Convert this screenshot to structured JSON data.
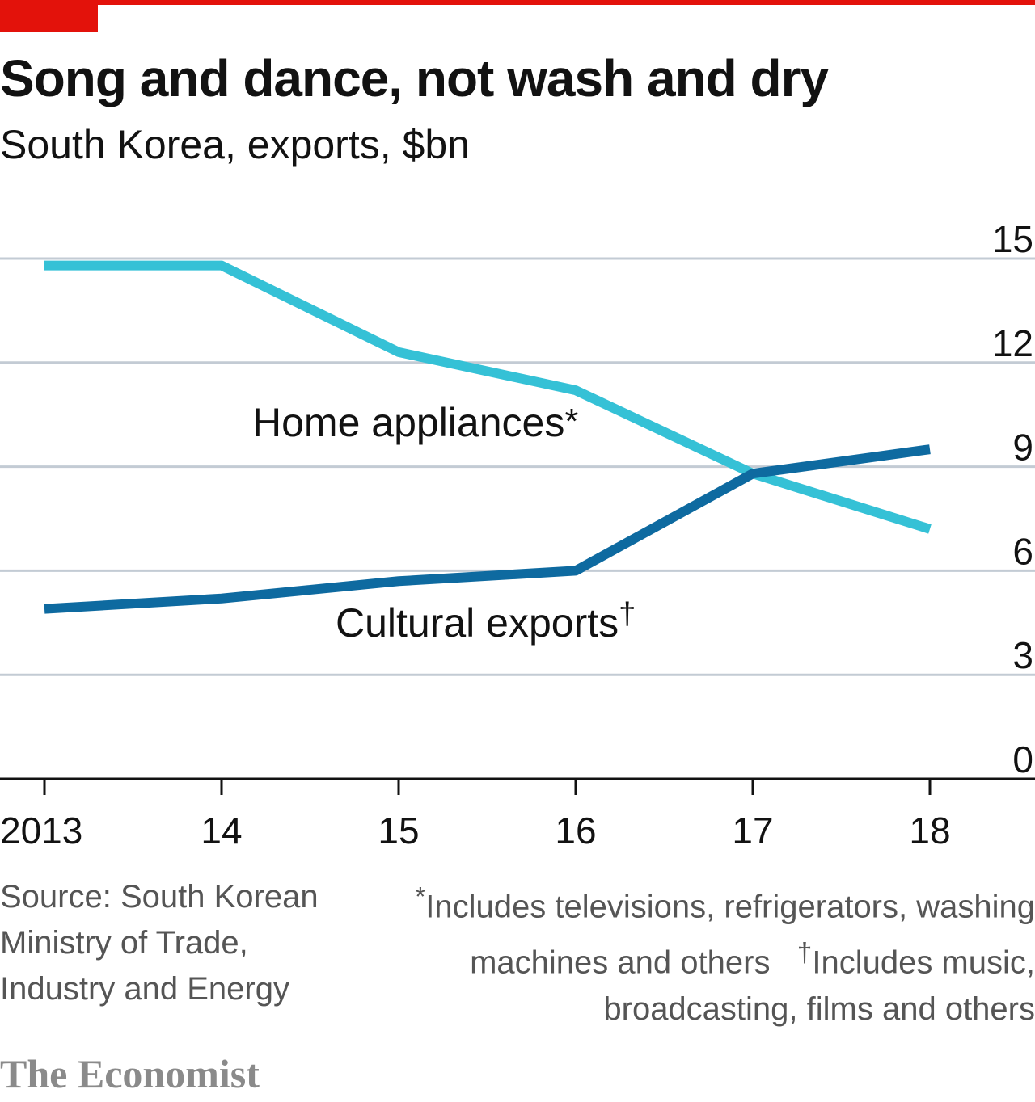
{
  "colors": {
    "accent": "#e3120b",
    "home_appliances": "#35c1d6",
    "cultural_exports": "#0e6aa0",
    "grid": "#c3cbd4",
    "axis": "#121212"
  },
  "footer": {
    "source": "Source: South Korean Ministry of Trade, Industry and Energy",
    "note_appliances_mark": "*",
    "note_appliances": "Includes televisions, refrigerators, washing machines and others",
    "note_cultural_mark": "†",
    "note_cultural": "Includes music, broadcasting, films and others",
    "brand": "The Economist"
  },
  "chart_data": {
    "type": "line",
    "title": "Song and dance, not wash and dry",
    "subtitle": "South Korea, exports, $bn",
    "categories": [
      "2013",
      "14",
      "15",
      "16",
      "17",
      "18"
    ],
    "x": [
      2013,
      2014,
      2015,
      2016,
      2017,
      2018
    ],
    "ylim": [
      0,
      15
    ],
    "yticks": [
      0,
      3,
      6,
      9,
      12,
      15
    ],
    "grid": true,
    "series": [
      {
        "name": "Home appliances*",
        "label_main": "Home appliances",
        "label_mark": "*",
        "color": "#35c1d6",
        "values": [
          14.8,
          14.8,
          12.3,
          11.2,
          8.8,
          7.2
        ]
      },
      {
        "name": "Cultural exports†",
        "label_main": "Cultural exports",
        "label_mark": "†",
        "color": "#0e6aa0",
        "values": [
          4.9,
          5.2,
          5.7,
          6.0,
          8.8,
          9.5
        ]
      }
    ]
  }
}
